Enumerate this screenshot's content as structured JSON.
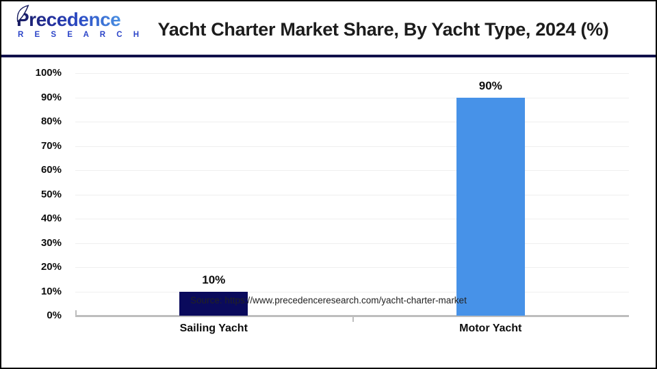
{
  "logo": {
    "name": "Precedence",
    "subtitle": "R E S E A R C H"
  },
  "header": {
    "title": "Yacht Charter Market Share, By Yacht Type, 2024 (%)"
  },
  "footer": {
    "source": "Source: https://www.precedenceresearch.com/yacht-charter-market"
  },
  "colors": {
    "divider_navy": "#10104A",
    "gridline_gray": "#EFEFEF",
    "baseline_gray": "#BDBDBD",
    "sailing_yacht_bar": "#0A0A5C",
    "motor_yacht_bar": "#4792E8",
    "logo_gradient_start": "#171A5E",
    "logo_gradient_end": "#4A90E2",
    "research_blue": "#2B44C8"
  },
  "chart_data": {
    "type": "bar",
    "title": "Yacht Charter Market Share, By Yacht Type, 2024 (%)",
    "categories": [
      "Sailing Yacht",
      "Motor Yacht"
    ],
    "values": [
      10,
      90
    ],
    "value_labels": [
      "10%",
      "90%"
    ],
    "bar_colors": [
      "#0A0A5C",
      "#4792E8"
    ],
    "xlabel": "",
    "ylabel": "",
    "ylim": [
      0,
      100
    ],
    "ytick_step": 10,
    "ytick_labels": [
      "0%",
      "10%",
      "20%",
      "30%",
      "40%",
      "50%",
      "60%",
      "70%",
      "80%",
      "90%",
      "100%"
    ],
    "grid": true,
    "legend": "none"
  }
}
